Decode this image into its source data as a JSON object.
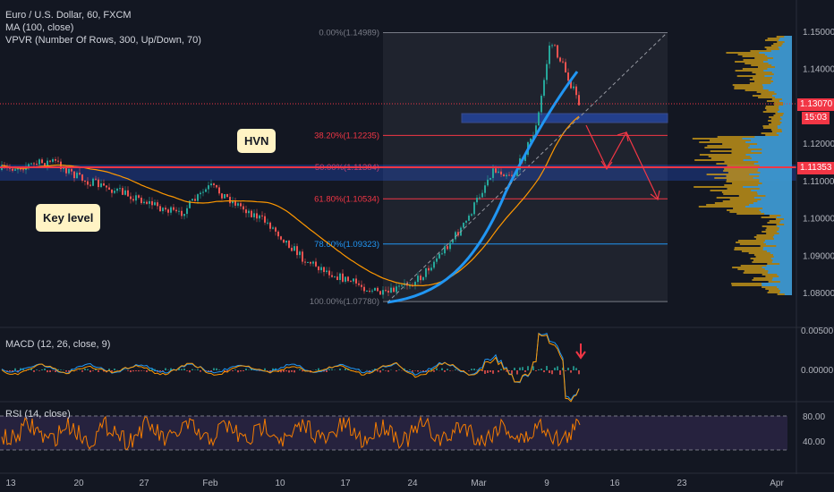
{
  "legend": {
    "symbol": "Euro / U.S. Dollar, 60, FXCM",
    "ma": "MA (100, close)",
    "vpvr": "VPVR (Number Of Rows, 300, Up/Down, 70)",
    "macd": "MACD (12, 26, close, 9)",
    "rsi": "RSI (14, close)"
  },
  "annotations": {
    "hvn": "HVN",
    "key_level": "Key level"
  },
  "price_tags": {
    "current": "1.13070",
    "countdown": "15:03",
    "level": "1.11353"
  },
  "fib_levels": [
    {
      "label": "0.00%(1.14989)",
      "price": 1.14989,
      "color": "#787b86"
    },
    {
      "label": "38.20%(1.12235)",
      "price": 1.12235,
      "color": "#f23645"
    },
    {
      "label": "50.00%(1.11384)",
      "price": 1.11384,
      "color": "#f23645"
    },
    {
      "label": "61.80%(1.10534)",
      "price": 1.10534,
      "color": "#f23645"
    },
    {
      "label": "78.60%(1.09323)",
      "price": 1.09323,
      "color": "#2196f3"
    },
    {
      "label": "100.00%(1.07780)",
      "price": 1.0778,
      "color": "#787b86"
    }
  ],
  "price_axis": [
    "1.15000",
    "1.14000",
    "1.13000",
    "1.12000",
    "1.11000",
    "1.10000",
    "1.09000",
    "1.08000"
  ],
  "macd_axis": [
    "0.00500",
    "0.00000"
  ],
  "rsi_axis": [
    "80.00",
    "40.00"
  ],
  "time_axis": [
    "13",
    "20",
    "27",
    "Feb",
    "10",
    "17",
    "24",
    "Mar",
    "9",
    "16",
    "23",
    "Apr"
  ],
  "colors": {
    "background": "#131722",
    "up": "#26a69a",
    "down": "#ef5350",
    "ma": "#ff9800",
    "rsi": "#f57c00",
    "level": "#f23645"
  }
}
